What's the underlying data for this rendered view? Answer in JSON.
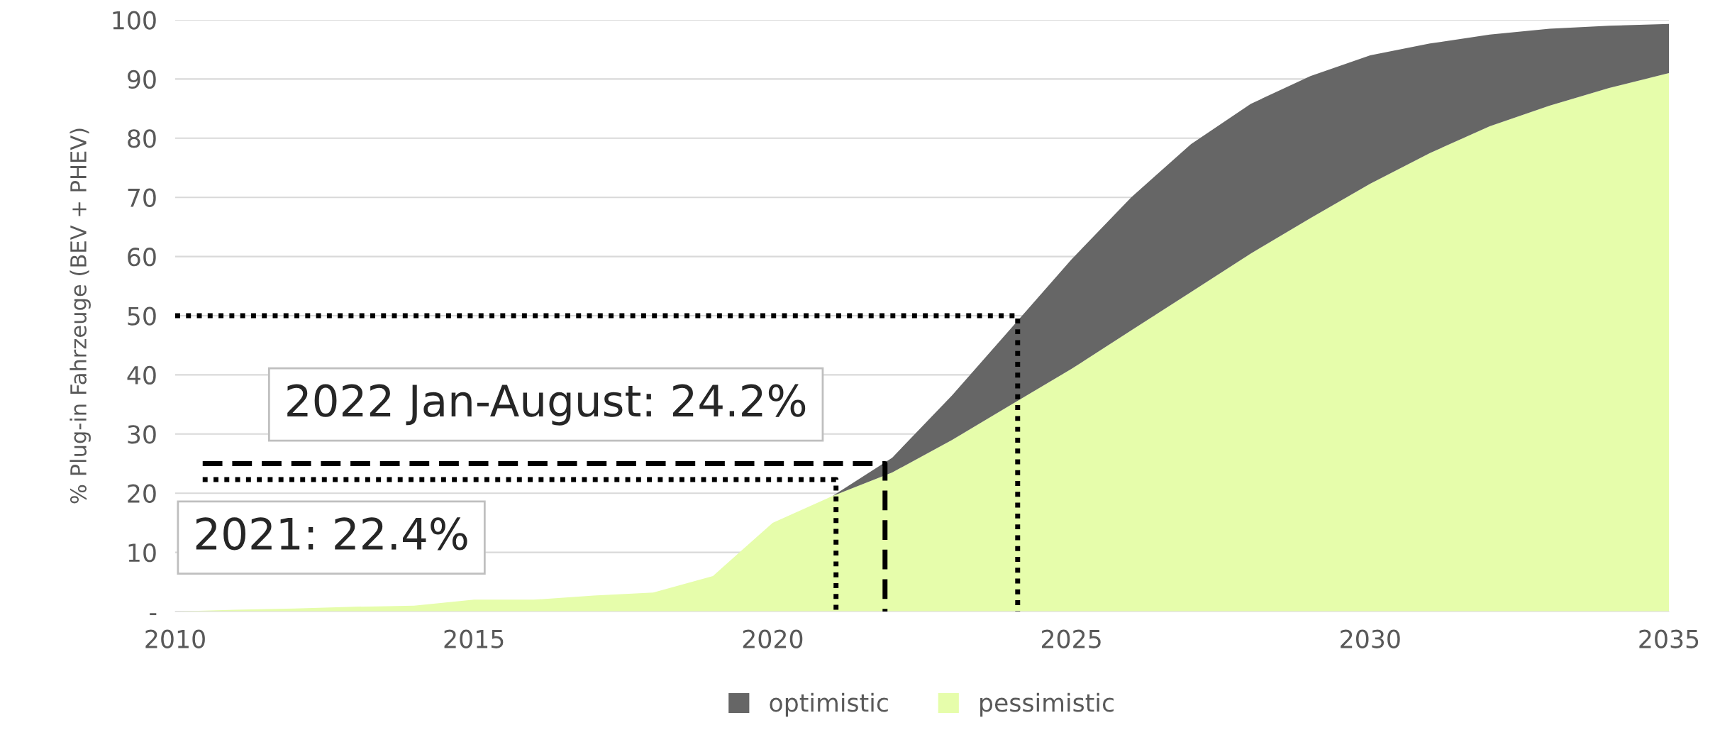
{
  "chart_data": {
    "type": "area",
    "stacked": true,
    "ylabel": "% Plug-in Fahrzeuge (BEV + PHEV)",
    "x": [
      2010,
      2011,
      2012,
      2013,
      2014,
      2015,
      2016,
      2017,
      2018,
      2019,
      2020,
      2021,
      2022,
      2023,
      2024,
      2025,
      2026,
      2027,
      2028,
      2029,
      2030,
      2031,
      2032,
      2033,
      2034,
      2035
    ],
    "series": [
      {
        "name": "pessimistic",
        "color": "#e6fdab",
        "values": [
          0,
          0.3,
          0.5,
          0.8,
          1,
          2,
          2,
          2.7,
          3.2,
          6,
          15,
          19.5,
          23.5,
          29,
          35,
          41,
          47.5,
          54,
          60.5,
          66.5,
          72.3,
          77.5,
          82,
          85.5,
          88.5,
          91
        ]
      },
      {
        "name": "optimistic",
        "color": "#666666",
        "values": [
          0,
          0,
          0,
          0,
          0,
          0,
          0,
          0,
          0,
          0,
          0,
          0,
          2.5,
          7.5,
          13,
          18.5,
          22.5,
          25,
          25.3,
          24,
          21.7,
          18.5,
          15.5,
          13,
          10.5,
          8.3
        ]
      },
      {
        "type": "line",
        "color": "#000000",
        "line_style": "dotted",
        "x": [
          2010,
          2024.1,
          2024.1
        ],
        "values": [
          50,
          50,
          0
        ]
      },
      {
        "type": "line",
        "color": "#000000",
        "line_style": "dashed",
        "x": [
          2010.46,
          2021.88,
          2021.88
        ],
        "values": [
          25,
          25,
          0
        ]
      },
      {
        "type": "line",
        "color": "#000000",
        "line_style": "dotted",
        "x": [
          2010.46,
          2021.06,
          2021.06
        ],
        "values": [
          22.3,
          22.3,
          0
        ]
      }
    ],
    "annotations": [
      "2022 Jan-August: 24.2%",
      "2021: 22.4%"
    ],
    "xlim": [
      2010,
      2035
    ],
    "xticks": [
      2010,
      2015,
      2020,
      2025,
      2030,
      2035
    ],
    "ylim": [
      0,
      100
    ],
    "yticks": [
      {
        "value": 0,
        "label": "-"
      },
      10,
      20,
      30,
      40,
      50,
      60,
      70,
      80,
      90,
      100
    ],
    "grid": "y",
    "legend": "bottom"
  }
}
